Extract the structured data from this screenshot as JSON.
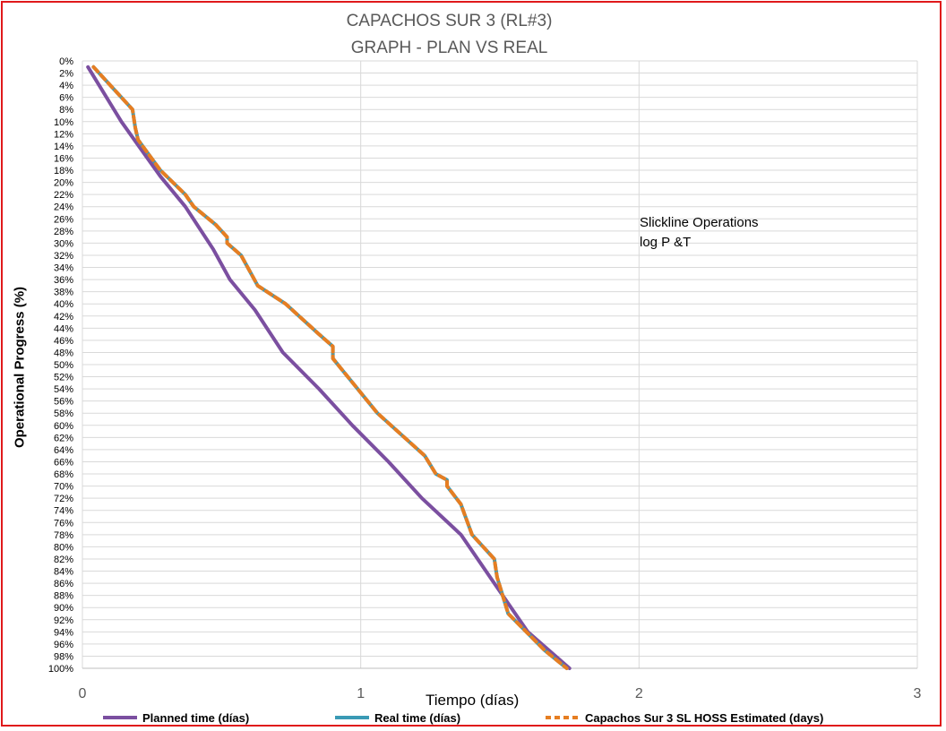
{
  "chart_data": {
    "type": "line",
    "title": "CAPACHOS SUR 3 (RL#3)",
    "subtitle": "GRAPH  - PLAN VS REAL",
    "xlabel": "Tiempo (días)",
    "ylabel": "Operational Progress (%)",
    "xlim": [
      0,
      3
    ],
    "ylim": [
      0,
      100
    ],
    "y_inverted": true,
    "x_ticks": [
      "0",
      "1",
      "2",
      "3"
    ],
    "y_ticks": [
      "0%",
      "2%",
      "4%",
      "6%",
      "8%",
      "10%",
      "12%",
      "14%",
      "16%",
      "18%",
      "20%",
      "22%",
      "24%",
      "26%",
      "28%",
      "30%",
      "32%",
      "34%",
      "36%",
      "38%",
      "40%",
      "42%",
      "44%",
      "46%",
      "48%",
      "50%",
      "52%",
      "54%",
      "56%",
      "58%",
      "60%",
      "62%",
      "64%",
      "66%",
      "68%",
      "70%",
      "72%",
      "74%",
      "76%",
      "78%",
      "80%",
      "82%",
      "84%",
      "86%",
      "88%",
      "90%",
      "92%",
      "94%",
      "96%",
      "98%",
      "100%"
    ],
    "grid": true,
    "legend_position": "bottom",
    "annotations": [
      "Slickline Operations",
      "log P &T"
    ],
    "series": [
      {
        "name": "Planned time (días)",
        "color": "#7b4fa0",
        "dash": false,
        "x": [
          0.02,
          0.14,
          0.28,
          0.37,
          0.47,
          0.53,
          0.62,
          0.72,
          0.85,
          0.97,
          1.1,
          1.22,
          1.36,
          1.48,
          1.6,
          1.75
        ],
        "y": [
          1,
          10,
          19,
          24,
          31,
          36,
          41,
          48,
          54,
          60,
          66,
          72,
          78,
          86,
          94,
          100
        ]
      },
      {
        "name": "Real time (días)",
        "color": "#3a9ab5",
        "dash": false,
        "x": [
          0.04,
          0.18,
          0.19,
          0.2,
          0.28,
          0.37,
          0.4,
          0.48,
          0.52,
          0.52,
          0.57,
          0.63,
          0.73,
          0.85,
          0.9,
          0.9,
          1.06,
          1.23,
          1.27,
          1.31,
          1.31,
          1.36,
          1.4,
          1.48,
          1.49,
          1.53,
          1.66,
          1.74
        ],
        "y": [
          1,
          8,
          11,
          13,
          18,
          22,
          24,
          27,
          29,
          30,
          32,
          37,
          40,
          45,
          47,
          49,
          58,
          65,
          68,
          69,
          70,
          73,
          78,
          82,
          85,
          91,
          97,
          100
        ]
      },
      {
        "name": "Capachos Sur 3 SL HOSS Estimated (days)",
        "color": "#e67e22",
        "dash": true,
        "x": [
          0.04,
          0.18,
          0.19,
          0.2,
          0.28,
          0.37,
          0.4,
          0.48,
          0.52,
          0.52,
          0.57,
          0.63,
          0.73,
          0.85,
          0.9,
          0.9,
          1.06,
          1.23,
          1.27,
          1.31,
          1.31,
          1.36,
          1.4,
          1.48,
          1.49,
          1.53,
          1.66,
          1.74
        ],
        "y": [
          1,
          8,
          11,
          13,
          18,
          22,
          24,
          27,
          29,
          30,
          32,
          37,
          40,
          45,
          47,
          49,
          58,
          65,
          68,
          69,
          70,
          73,
          78,
          82,
          85,
          91,
          97,
          100
        ]
      }
    ]
  }
}
